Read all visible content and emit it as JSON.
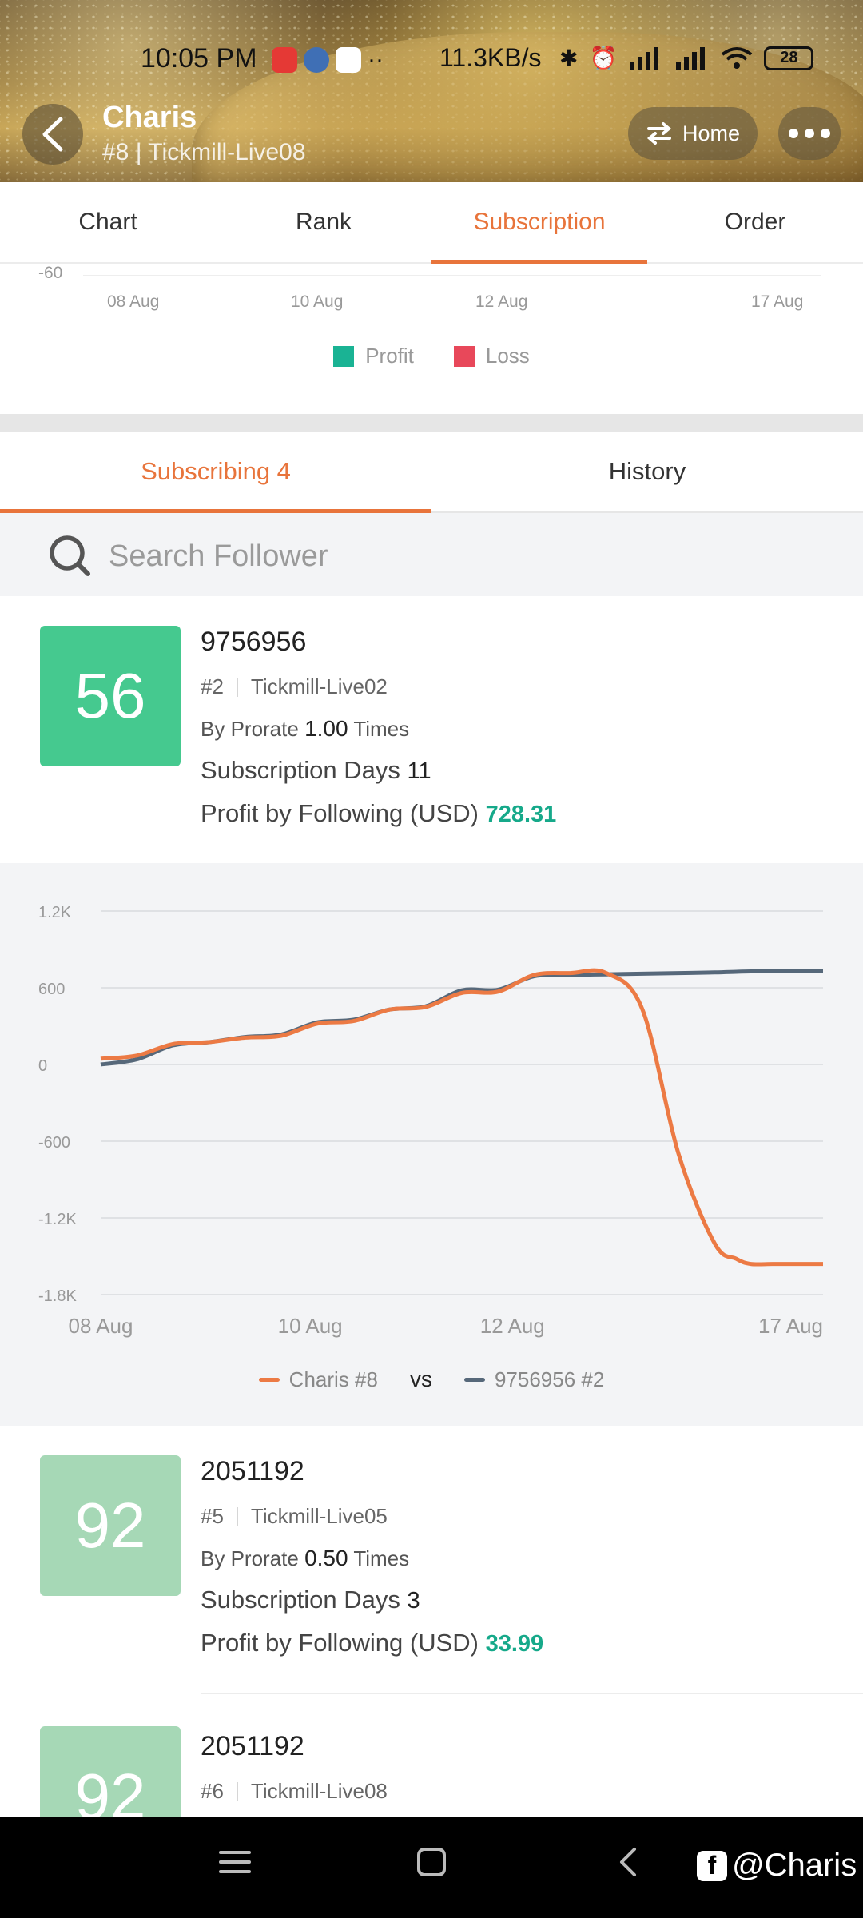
{
  "status_bar": {
    "time": "10:05 PM",
    "network_speed": "11.3KB/s",
    "battery": "28"
  },
  "header": {
    "name": "Charis",
    "subtitle": "#8 | Tickmill-Live08",
    "home_label": "Home"
  },
  "top_tabs": [
    {
      "label": "Chart",
      "active": false
    },
    {
      "label": "Rank",
      "active": false
    },
    {
      "label": "Subscription",
      "active": true
    },
    {
      "label": "Order",
      "active": false
    }
  ],
  "profit_loss_chart": {
    "y_tick": "-60",
    "x_ticks": [
      "08 Aug",
      "10 Aug",
      "12 Aug",
      "17 Aug"
    ],
    "legend": [
      {
        "label": "Profit",
        "color": "#1ab394"
      },
      {
        "label": "Loss",
        "color": "#e8485a"
      }
    ]
  },
  "sub_tabs": [
    {
      "label": "Subscribing 4",
      "active": true
    },
    {
      "label": "History",
      "active": false
    }
  ],
  "search": {
    "placeholder": "Search Follower"
  },
  "followers": [
    {
      "score": "56",
      "score_color": "#45c98f",
      "id": "9756956",
      "rank": "#2",
      "server": "Tickmill-Live02",
      "prorate_prefix": "By Prorate",
      "prorate": "1.00",
      "prorate_suffix": "Times",
      "days_label": "Subscription Days",
      "days": "11",
      "profit_label": "Profit by Following (USD)",
      "profit": "728.31"
    },
    {
      "score": "92",
      "score_color": "#a6d8b6",
      "id": "2051192",
      "rank": "#5",
      "server": "Tickmill-Live05",
      "prorate_prefix": "By Prorate",
      "prorate": "0.50",
      "prorate_suffix": "Times",
      "days_label": "Subscription Days",
      "days": "3",
      "profit_label": "Profit by Following (USD)",
      "profit": "33.99"
    },
    {
      "score": "92",
      "score_color": "#a6d8b6",
      "id": "2051192",
      "rank": "#6",
      "server": "Tickmill-Live08"
    }
  ],
  "chart_data": {
    "type": "line",
    "y_tick_labels": [
      "1.2K",
      "600",
      "0",
      "-600",
      "-1.2K",
      "-1.8K"
    ],
    "ylim": [
      -1800,
      1200
    ],
    "x_tick_labels": [
      "08 Aug",
      "10 Aug",
      "12 Aug",
      "17 Aug"
    ],
    "x": [
      0,
      0.05,
      0.1,
      0.15,
      0.2,
      0.25,
      0.3,
      0.35,
      0.4,
      0.45,
      0.5,
      0.55,
      0.6,
      0.65,
      0.7,
      0.75,
      0.8,
      0.85,
      0.88,
      0.9,
      0.93,
      0.96,
      1.0
    ],
    "series": [
      {
        "name": "Charis #8",
        "color": "#ec7a44",
        "values": [
          45,
          70,
          160,
          175,
          210,
          225,
          320,
          340,
          430,
          450,
          560,
          570,
          700,
          715,
          715,
          430,
          -700,
          -1400,
          -1520,
          -1560,
          -1560,
          -1560,
          -1560
        ]
      },
      {
        "name": "9756956 #2",
        "color": "#56687a",
        "values": [
          0,
          40,
          150,
          175,
          215,
          235,
          330,
          350,
          430,
          455,
          580,
          585,
          690,
          700,
          705,
          710,
          715,
          720,
          725,
          728,
          728,
          728,
          728
        ]
      }
    ],
    "vs_label": "vs"
  },
  "watermark": "@Charis"
}
